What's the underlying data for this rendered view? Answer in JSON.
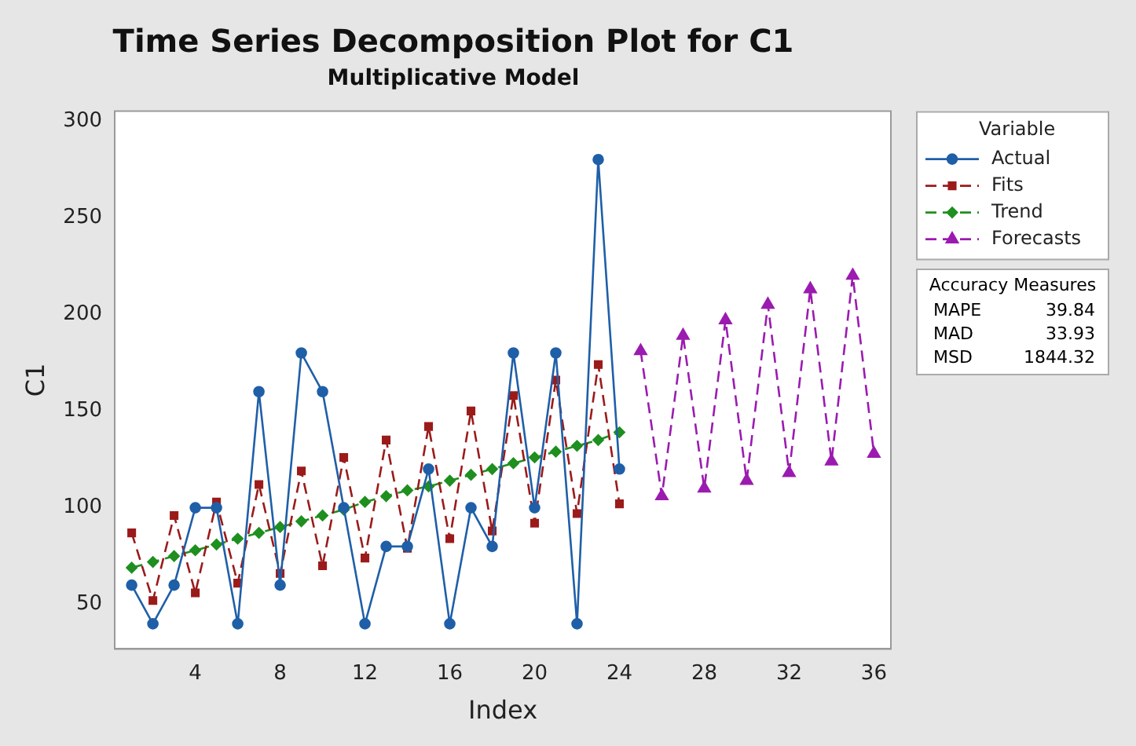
{
  "chart_data": {
    "type": "line",
    "title": "Time Series Decomposition Plot for C1",
    "subtitle": "Multiplicative Model",
    "xlabel": "Index",
    "ylabel": "C1",
    "legend_title": "Variable",
    "legend": "top right",
    "grid": false,
    "xlim": [
      0.2,
      36.8
    ],
    "xticks": [
      4,
      8,
      12,
      16,
      20,
      24,
      28,
      32,
      36
    ],
    "ylim": [
      27,
      305
    ],
    "yticks": [
      50,
      100,
      150,
      200,
      250,
      300
    ],
    "series": [
      {
        "name": "Actual",
        "color": "#1f5fa8",
        "marker": "circle",
        "line_style": "solid",
        "x": [
          1,
          2,
          3,
          4,
          5,
          6,
          7,
          8,
          9,
          10,
          11,
          12,
          13,
          14,
          15,
          16,
          17,
          18,
          19,
          20,
          21,
          22,
          23,
          24
        ],
        "values": [
          60,
          40,
          60,
          100,
          100,
          40,
          160,
          60,
          180,
          160,
          100,
          40,
          80,
          80,
          120,
          40,
          100,
          80,
          180,
          100,
          180,
          40,
          280,
          120
        ]
      },
      {
        "name": "Fits",
        "color": "#9b1b1b",
        "marker": "square",
        "line_style": "dashed",
        "x": [
          1,
          2,
          3,
          4,
          5,
          6,
          7,
          8,
          9,
          10,
          11,
          12,
          13,
          14,
          15,
          16,
          17,
          18,
          19,
          20,
          21,
          22,
          23,
          24
        ],
        "values": [
          87,
          52,
          96,
          56,
          103,
          61,
          112,
          66,
          119,
          70,
          126,
          74,
          135,
          79,
          142,
          84,
          150,
          88,
          158,
          92,
          166,
          97,
          174,
          102
        ]
      },
      {
        "name": "Trend",
        "color": "#1f8f1f",
        "marker": "diamond",
        "line_style": "dashed",
        "x": [
          1,
          2,
          3,
          4,
          5,
          6,
          7,
          8,
          9,
          10,
          11,
          12,
          13,
          14,
          15,
          16,
          17,
          18,
          19,
          20,
          21,
          22,
          23,
          24
        ],
        "values": [
          69,
          72,
          75,
          78,
          81,
          84,
          87,
          90,
          93,
          96,
          99,
          103,
          106,
          109,
          111,
          114,
          117,
          120,
          123,
          126,
          129,
          132,
          135,
          139
        ]
      },
      {
        "name": "Forecasts",
        "color": "#9b1bb0",
        "marker": "triangle",
        "line_style": "dashed",
        "x": [
          25,
          26,
          27,
          28,
          29,
          30,
          31,
          32,
          33,
          34,
          35,
          36
        ],
        "values": [
          181,
          106,
          189,
          110,
          197,
          114,
          205,
          118,
          213,
          124,
          220,
          128
        ]
      }
    ],
    "annotations": [
      "Accuracy Measures",
      "MAPE 39.84",
      "MAD 33.93",
      "MSD 1844.32"
    ]
  }
}
